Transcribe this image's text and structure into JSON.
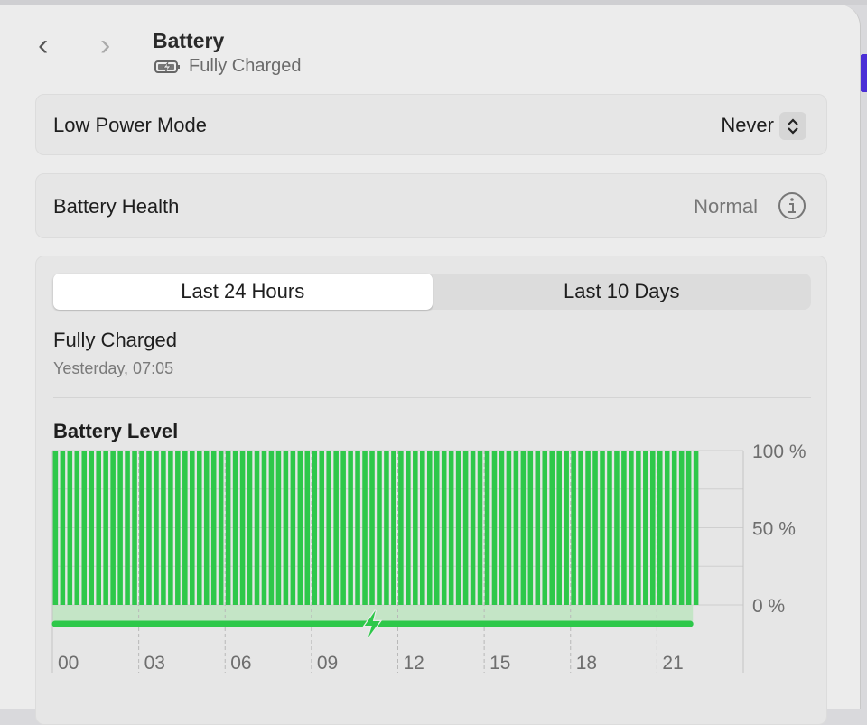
{
  "header": {
    "title": "Battery",
    "status": "Fully Charged",
    "back_icon": "chevron-left-icon",
    "forward_icon": "chevron-right-icon",
    "battery_icon": "battery-charging-icon"
  },
  "low_power": {
    "label": "Low Power Mode",
    "value": "Never"
  },
  "health": {
    "label": "Battery Health",
    "value": "Normal",
    "info_icon": "info-circle-icon"
  },
  "tabs": [
    {
      "label": "Last 24 Hours",
      "selected": true
    },
    {
      "label": "Last 10 Days",
      "selected": false
    }
  ],
  "status": {
    "title": "Fully Charged",
    "time": "Yesterday, 07:05"
  },
  "chart_title": "Battery Level",
  "chart_data": {
    "type": "bar",
    "title": "Battery Level",
    "x_tick_labels": [
      "00",
      "03",
      "06",
      "09",
      "12",
      "15",
      "18",
      "21"
    ],
    "y_tick_labels": [
      "100 %",
      "50 %",
      "0 %"
    ],
    "ylim": [
      0,
      100
    ],
    "xlim_hours": [
      0,
      24
    ],
    "interval_minutes": 15,
    "values": [
      100,
      100,
      100,
      100,
      100,
      100,
      100,
      100,
      100,
      100,
      100,
      100,
      100,
      100,
      100,
      100,
      100,
      100,
      100,
      100,
      100,
      100,
      100,
      100,
      100,
      100,
      100,
      100,
      100,
      100,
      100,
      100,
      100,
      100,
      100,
      100,
      100,
      100,
      100,
      100,
      100,
      100,
      100,
      100,
      100,
      100,
      100,
      100,
      100,
      100,
      100,
      100,
      100,
      100,
      100,
      100,
      100,
      100,
      100,
      100,
      100,
      100,
      100,
      100,
      100,
      100,
      100,
      100,
      100,
      100,
      100,
      100,
      100,
      100,
      100,
      100,
      100,
      100,
      100,
      100,
      100,
      100,
      100,
      100,
      100,
      100,
      100,
      100,
      100,
      100
    ],
    "charging_hours": [
      0,
      22.25
    ],
    "charge_marker_hour": 11.1,
    "grid": true,
    "colors": {
      "bar": "#2ec84a",
      "charging": "#2ec84a",
      "charging_band": "#c4e5c6"
    }
  }
}
